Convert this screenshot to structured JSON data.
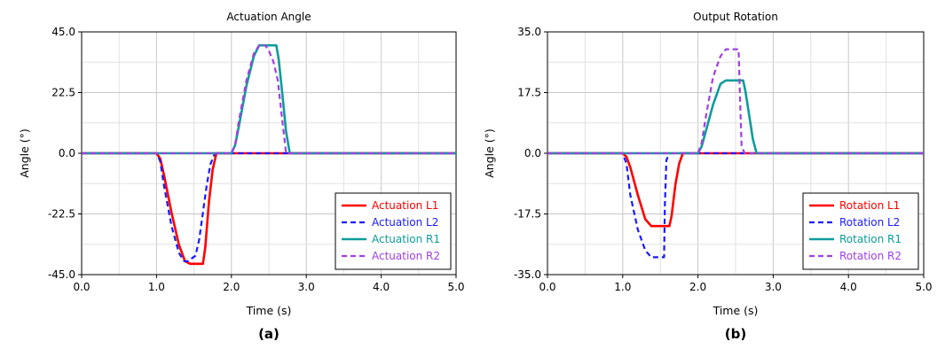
{
  "chart_data": [
    {
      "type": "line",
      "panel_label": "(a)",
      "title": "Actuation Angle",
      "xlabel": "Time (s)",
      "ylabel": "Angle (°)",
      "xlim": [
        0,
        5
      ],
      "ylim": [
        -45,
        45
      ],
      "xticks": [
        0,
        1,
        2,
        3,
        4,
        5
      ],
      "xtick_labels": [
        "0.0",
        "1.0",
        "2.0",
        "3.0",
        "4.0",
        "5.0"
      ],
      "yticks": [
        -45,
        -22.5,
        0,
        22.5,
        45
      ],
      "ytick_labels": [
        "-45.0",
        "-22.5",
        "0.0",
        "22.5",
        "45.0"
      ],
      "grid": true,
      "legend_position": "bottom-right",
      "series": [
        {
          "name": "Actuation L1",
          "color": "#ff0000",
          "dash": "solid",
          "x": [
            0,
            1.0,
            1.05,
            1.1,
            1.2,
            1.3,
            1.38,
            1.45,
            1.55,
            1.62,
            1.65,
            1.7,
            1.75,
            1.8,
            1.85,
            5
          ],
          "y": [
            0,
            0,
            -2,
            -8,
            -22,
            -34,
            -40,
            -41,
            -41,
            -41,
            -35,
            -18,
            -6,
            0,
            0,
            0
          ]
        },
        {
          "name": "Actuation L2",
          "color": "#1a1aff",
          "dash": "dashed",
          "x": [
            0,
            1.0,
            1.05,
            1.1,
            1.2,
            1.3,
            1.37,
            1.42,
            1.47,
            1.52,
            1.57,
            1.62,
            1.67,
            1.72,
            1.78,
            5
          ],
          "y": [
            0,
            0,
            -3,
            -12,
            -27,
            -37,
            -40,
            -40,
            -39,
            -38,
            -32,
            -22,
            -12,
            -4,
            0,
            0
          ]
        },
        {
          "name": "Actuation R1",
          "color": "#0f9b9b",
          "dash": "solid",
          "x": [
            0,
            2.0,
            2.05,
            2.1,
            2.2,
            2.3,
            2.37,
            2.42,
            2.5,
            2.6,
            2.63,
            2.68,
            2.73,
            2.78,
            5
          ],
          "y": [
            0,
            0,
            3,
            10,
            25,
            36,
            40,
            40,
            40,
            40,
            35,
            22,
            8,
            0,
            0
          ]
        },
        {
          "name": "Actuation R2",
          "color": "#a040e0",
          "dash": "dashed",
          "x": [
            0,
            2.0,
            2.05,
            2.1,
            2.2,
            2.3,
            2.37,
            2.45,
            2.5,
            2.56,
            2.62,
            2.68,
            2.73,
            5
          ],
          "y": [
            0,
            0,
            3,
            12,
            27,
            37,
            40,
            40,
            38,
            34,
            27,
            12,
            0,
            0
          ]
        }
      ]
    },
    {
      "type": "line",
      "panel_label": "(b)",
      "title": "Output Rotation",
      "xlabel": "Time (s)",
      "ylabel": "Angle (°)",
      "xlim": [
        0,
        5
      ],
      "ylim": [
        -35,
        35
      ],
      "xticks": [
        0,
        1,
        2,
        3,
        4,
        5
      ],
      "xtick_labels": [
        "0.0",
        "1.0",
        "2.0",
        "3.0",
        "4.0",
        "5.0"
      ],
      "yticks": [
        -35,
        -17.5,
        0,
        17.5,
        35
      ],
      "ytick_labels": [
        "-35.0",
        "-17.5",
        "0.0",
        "17.5",
        "35.0"
      ],
      "grid": true,
      "legend_position": "bottom-right",
      "series": [
        {
          "name": "Rotation L1",
          "color": "#ff0000",
          "dash": "solid",
          "x": [
            0,
            1.0,
            1.05,
            1.1,
            1.2,
            1.3,
            1.38,
            1.45,
            1.55,
            1.62,
            1.65,
            1.7,
            1.75,
            1.8,
            1.85,
            5
          ],
          "y": [
            0,
            0,
            -1,
            -4,
            -12,
            -19,
            -21,
            -21,
            -21,
            -21,
            -18,
            -9,
            -3,
            0,
            0,
            0
          ]
        },
        {
          "name": "Rotation L2",
          "color": "#1a1aff",
          "dash": "dashed",
          "x": [
            0,
            1.0,
            1.05,
            1.1,
            1.2,
            1.3,
            1.38,
            1.42,
            1.5,
            1.55,
            1.56,
            1.58,
            1.62,
            5
          ],
          "y": [
            0,
            0,
            -3,
            -12,
            -22,
            -28,
            -30,
            -30,
            -30,
            -30,
            -15,
            -2,
            0,
            0
          ]
        },
        {
          "name": "Rotation R1",
          "color": "#0f9b9b",
          "dash": "solid",
          "x": [
            0,
            2.0,
            2.05,
            2.1,
            2.2,
            2.3,
            2.37,
            2.45,
            2.6,
            2.63,
            2.68,
            2.73,
            2.78,
            5
          ],
          "y": [
            0,
            0,
            2,
            6,
            14,
            20,
            21,
            21,
            21,
            18,
            11,
            4,
            0,
            0
          ]
        },
        {
          "name": "Rotation R2",
          "color": "#a040e0",
          "dash": "dashed",
          "x": [
            0,
            2.0,
            2.05,
            2.1,
            2.2,
            2.3,
            2.37,
            2.42,
            2.5,
            2.54,
            2.56,
            2.58,
            2.62,
            5
          ],
          "y": [
            0,
            0,
            3,
            10,
            22,
            28,
            30,
            30,
            30,
            30,
            15,
            2,
            0,
            0
          ]
        }
      ]
    }
  ]
}
